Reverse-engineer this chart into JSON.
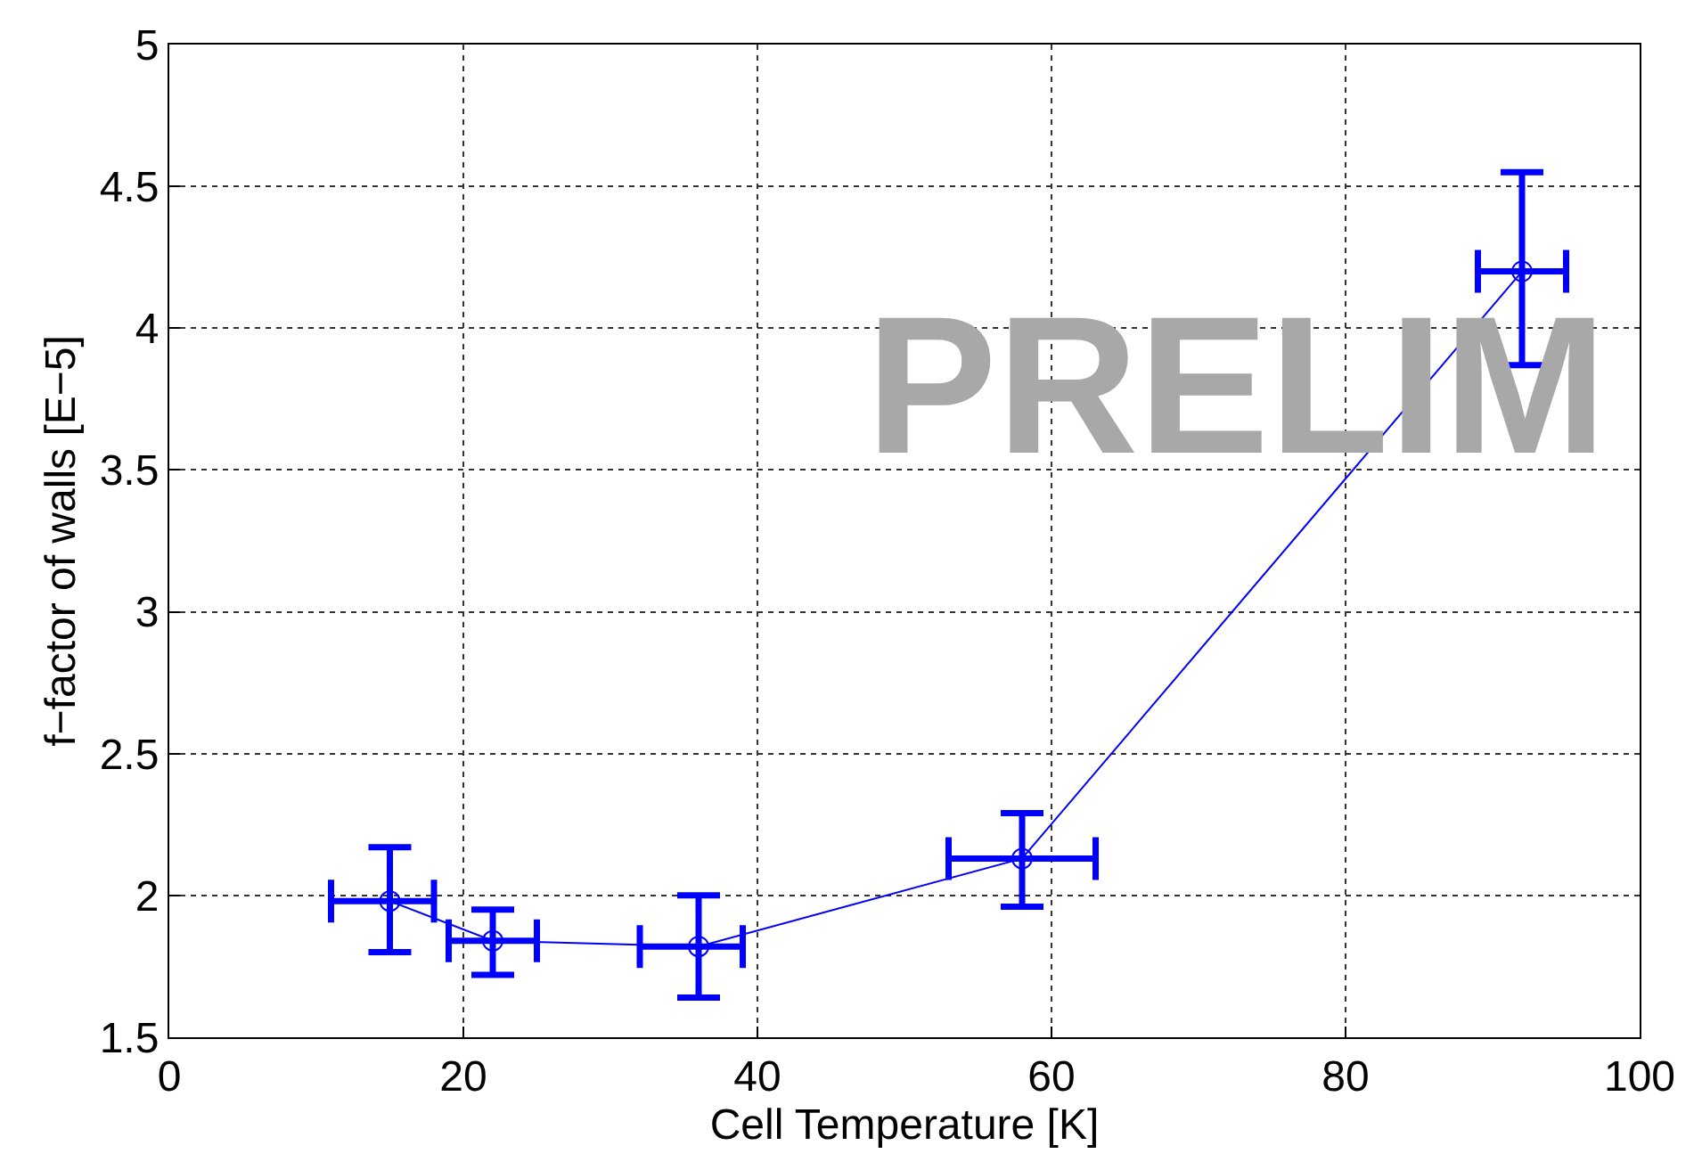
{
  "chart_data": {
    "type": "line",
    "xlabel": "Cell Temperature [K]",
    "ylabel": "f−factor of walls [E−5]",
    "x": [
      15,
      22,
      36,
      58,
      92
    ],
    "series": [
      {
        "color": "#0000ff",
        "values": [
          1.98,
          1.84,
          1.82,
          2.13,
          4.2
        ],
        "errors": [
          [
            1.8,
            2.17
          ],
          [
            1.72,
            1.95
          ],
          [
            1.64,
            2.0
          ],
          [
            1.96,
            2.29
          ],
          [
            3.87,
            4.55
          ]
        ],
        "xerrors": [
          [
            11,
            18
          ],
          [
            19,
            25
          ],
          [
            32,
            39
          ],
          [
            53,
            63
          ],
          [
            89,
            95
          ]
        ]
      }
    ],
    "xlim": [
      0,
      100
    ],
    "xticks": [
      0,
      20,
      40,
      60,
      80,
      100
    ],
    "ylim": [
      1.5,
      5
    ],
    "yticks": [
      1.5,
      2,
      2.5,
      3,
      3.5,
      4,
      4.5,
      5
    ],
    "grid": true,
    "marker": "circle",
    "line_style": "solid",
    "annotations": [
      "PRELIM"
    ]
  }
}
